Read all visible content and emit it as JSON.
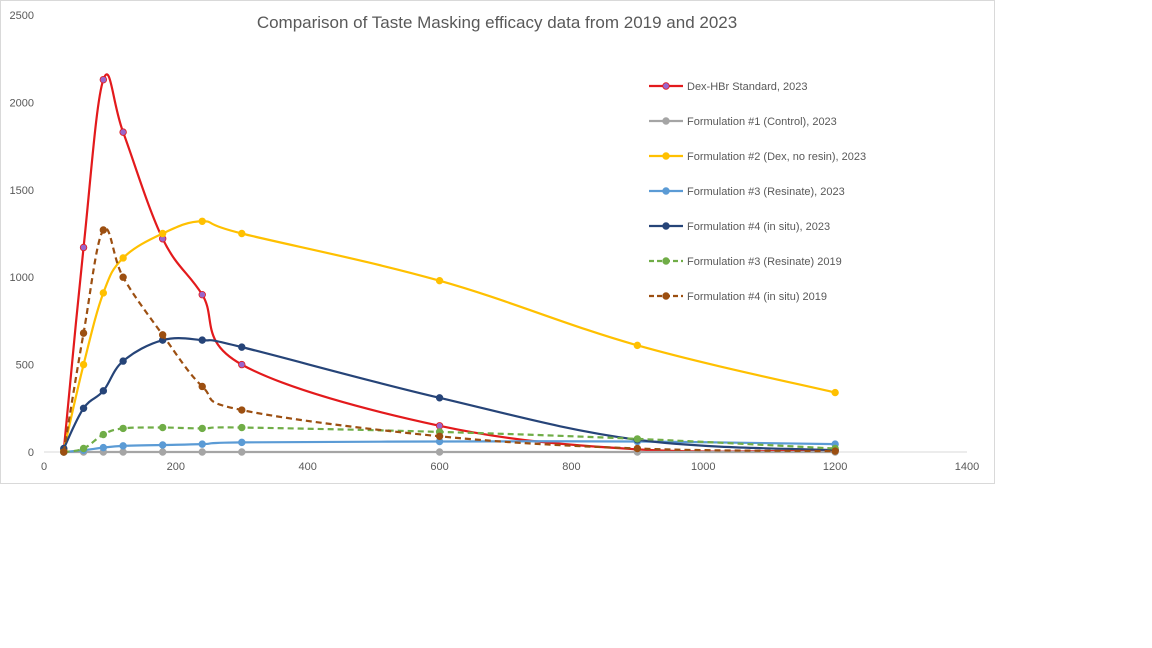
{
  "chart_data": {
    "type": "line",
    "title": "Comparison of Taste Masking efficacy data from 2019 and 2023",
    "xlabel": "",
    "ylabel": "",
    "xlim": [
      0,
      1400
    ],
    "ylim": [
      0,
      2500
    ],
    "x_ticks": [
      0,
      200,
      400,
      600,
      800,
      1000,
      1200,
      1400
    ],
    "y_ticks": [
      0,
      500,
      1000,
      1500,
      2000,
      2500
    ],
    "grid": false,
    "legend_position": "right",
    "series": [
      {
        "name": "Dex-HBr Standard, 2023",
        "color": "#e31a1c",
        "marker_color": "#9966cc",
        "dash": false,
        "x": [
          30,
          60,
          90,
          120,
          180,
          240,
          300,
          600,
          900,
          1200
        ],
        "y": [
          10,
          1170,
          2130,
          1830,
          1220,
          900,
          500,
          150,
          15,
          10
        ]
      },
      {
        "name": "Formulation #1 (Control), 2023",
        "color": "#a5a5a5",
        "marker_color": "#a5a5a5",
        "dash": false,
        "x": [
          30,
          60,
          90,
          120,
          180,
          240,
          300,
          600,
          900,
          1200
        ],
        "y": [
          0,
          0,
          0,
          0,
          0,
          0,
          0,
          0,
          0,
          0
        ]
      },
      {
        "name": "Formulation #2 (Dex, no resin), 2023",
        "color": "#ffc000",
        "marker_color": "#ffc000",
        "dash": false,
        "x": [
          30,
          60,
          90,
          120,
          180,
          240,
          300,
          600,
          900,
          1200
        ],
        "y": [
          10,
          500,
          910,
          1110,
          1250,
          1320,
          1250,
          980,
          610,
          340
        ]
      },
      {
        "name": "Formulation #3 (Resinate), 2023",
        "color": "#5b9bd5",
        "marker_color": "#5b9bd5",
        "dash": false,
        "x": [
          30,
          60,
          90,
          120,
          180,
          240,
          300,
          600,
          900,
          1200
        ],
        "y": [
          0,
          10,
          25,
          35,
          40,
          45,
          55,
          60,
          60,
          45
        ]
      },
      {
        "name": "Formulation #4 (in situ), 2023",
        "color": "#264478",
        "marker_color": "#264478",
        "dash": false,
        "x": [
          30,
          60,
          90,
          120,
          180,
          240,
          300,
          600,
          900,
          1200
        ],
        "y": [
          20,
          250,
          350,
          520,
          640,
          640,
          600,
          310,
          70,
          10
        ]
      },
      {
        "name": "Formulation #3 (Resinate) 2019",
        "color": "#70ad47",
        "marker_color": "#70ad47",
        "dash": true,
        "x": [
          30,
          60,
          90,
          120,
          180,
          240,
          300,
          600,
          900,
          1200
        ],
        "y": [
          0,
          20,
          100,
          135,
          140,
          135,
          140,
          115,
          75,
          20
        ]
      },
      {
        "name": "Formulation #4 (in situ) 2019",
        "color": "#9c4f11",
        "marker_color": "#9c4f11",
        "dash": true,
        "x": [
          30,
          60,
          90,
          120,
          180,
          240,
          300,
          600,
          900,
          1200
        ],
        "y": [
          0,
          680,
          1270,
          1000,
          670,
          375,
          240,
          90,
          20,
          5
        ]
      }
    ]
  }
}
